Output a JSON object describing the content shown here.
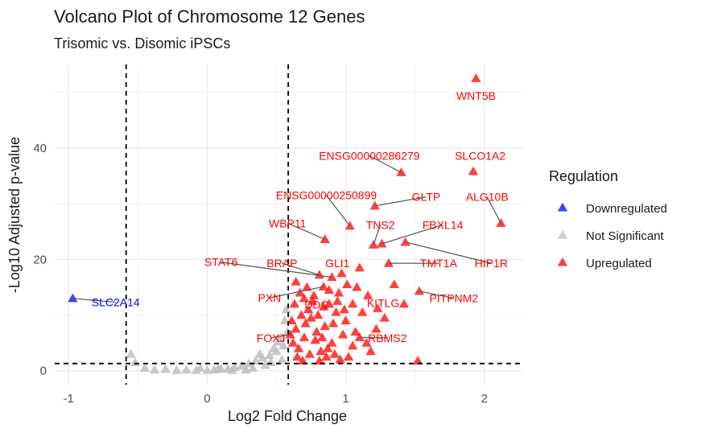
{
  "chart_data": {
    "type": "scatter",
    "title": "Volcano Plot of Chromosome 12 Genes",
    "subtitle": "Trisomic vs. Disomic iPSCs",
    "xlabel": "Log2 Fold Change",
    "ylabel": "-Log10 Adjusted p-value",
    "xlim": [
      -1.1,
      2.28
    ],
    "ylim": [
      -2.5,
      55
    ],
    "xticks": [
      -1,
      0,
      1,
      2
    ],
    "yticks": [
      0,
      20,
      40
    ],
    "grid": true,
    "thresholds": {
      "fold_change": [
        -0.585,
        0.585
      ],
      "p_value_line": 1.3
    },
    "legend": {
      "title": "Regulation",
      "position": "right",
      "entries": [
        {
          "name": "Downregulated",
          "color": "#0000FF"
        },
        {
          "name": "Not Significant",
          "color": "#BEBEBE"
        },
        {
          "name": "Upregulated",
          "color": "#FF0000"
        }
      ]
    },
    "colors": {
      "Downregulated": "#0000FF",
      "Not Significant": "#BEBEBE",
      "Upregulated": "#FF0000"
    },
    "labeled_points": [
      {
        "gene": "WNT5B",
        "x": 1.94,
        "y": 52.5,
        "regulation": "Upregulated",
        "lx": 1.94,
        "ly": 49.4
      },
      {
        "gene": "ENSG00000286279",
        "x": 1.4,
        "y": 35.6,
        "regulation": "Upregulated",
        "lx": 1.17,
        "ly": 38.6
      },
      {
        "gene": "SLCO1A2",
        "x": 1.92,
        "y": 35.8,
        "regulation": "Upregulated",
        "lx": 1.97,
        "ly": 38.6
      },
      {
        "gene": "ENSG00000250899",
        "x": 1.03,
        "y": 26.0,
        "regulation": "Upregulated",
        "lx": 0.86,
        "ly": 31.5
      },
      {
        "gene": "GLTP",
        "x": 1.21,
        "y": 29.6,
        "regulation": "Upregulated",
        "lx": 1.58,
        "ly": 31.2
      },
      {
        "gene": "ALG10B",
        "x": 2.12,
        "y": 26.5,
        "regulation": "Upregulated",
        "lx": 2.02,
        "ly": 31.2
      },
      {
        "gene": "WBP11",
        "x": 0.85,
        "y": 23.6,
        "regulation": "Upregulated",
        "lx": 0.58,
        "ly": 26.5
      },
      {
        "gene": "TNS2",
        "x": 1.2,
        "y": 22.6,
        "regulation": "Upregulated",
        "lx": 1.25,
        "ly": 26.2
      },
      {
        "gene": "FBXL14",
        "x": 1.26,
        "y": 22.8,
        "regulation": "Upregulated",
        "lx": 1.7,
        "ly": 26.2
      },
      {
        "gene": "HIP1R",
        "x": 1.43,
        "y": 23.1,
        "regulation": "Upregulated",
        "lx": 2.05,
        "ly": 19.3
      },
      {
        "gene": "STAT6",
        "x": 0.9,
        "y": 16.8,
        "regulation": "Upregulated",
        "lx": 0.1,
        "ly": 19.5
      },
      {
        "gene": "BRAP",
        "x": 0.81,
        "y": 17.2,
        "regulation": "Upregulated",
        "lx": 0.54,
        "ly": 19.3
      },
      {
        "gene": "GLI1",
        "x": 0.97,
        "y": 17.5,
        "regulation": "Upregulated",
        "lx": 0.94,
        "ly": 19.3
      },
      {
        "gene": "TMT1A",
        "x": 1.31,
        "y": 19.3,
        "regulation": "Upregulated",
        "lx": 1.67,
        "ly": 19.3
      },
      {
        "gene": "PITPNM2",
        "x": 1.53,
        "y": 14.3,
        "regulation": "Upregulated",
        "lx": 1.78,
        "ly": 13.0
      },
      {
        "gene": "PXN",
        "x": 0.84,
        "y": 15.1,
        "regulation": "Upregulated",
        "lx": 0.45,
        "ly": 13.1
      },
      {
        "gene": "KITLG",
        "x": 1.23,
        "y": 11.2,
        "regulation": "Upregulated",
        "lx": 1.27,
        "ly": 12.2
      },
      {
        "gene": "DDC",
        "x": 0.88,
        "y": 12.0,
        "regulation": "Upregulated",
        "lx": 0.79,
        "ly": 11.9
      },
      {
        "gene": "FOXJ",
        "x": 0.6,
        "y": 6.5,
        "regulation": "Upregulated",
        "lx": 0.46,
        "ly": 5.9
      },
      {
        "gene": "RBMS2",
        "x": 1.1,
        "y": 6.0,
        "regulation": "Upregulated",
        "lx": 1.3,
        "ly": 5.9
      },
      {
        "gene": "SLC2A14",
        "x": -0.97,
        "y": 13.0,
        "regulation": "Downregulated",
        "lx": -0.66,
        "ly": 12.3
      }
    ],
    "unlabeled_upregulated": [
      [
        1.52,
        1.8
      ],
      [
        1.35,
        15.5
      ],
      [
        1.1,
        18.5
      ],
      [
        1.42,
        12.0
      ],
      [
        1.16,
        13.5
      ],
      [
        1.05,
        12.0
      ],
      [
        1.28,
        9.5
      ],
      [
        1.22,
        7.5
      ],
      [
        1.15,
        5.0
      ],
      [
        1.05,
        4.5
      ],
      [
        1.0,
        9.0
      ],
      [
        0.95,
        14.0
      ],
      [
        1.08,
        15.0
      ],
      [
        0.93,
        10.5
      ],
      [
        0.98,
        6.5
      ],
      [
        0.9,
        5.0
      ],
      [
        0.85,
        8.0
      ],
      [
        0.8,
        10.0
      ],
      [
        0.76,
        12.5
      ],
      [
        0.72,
        15.0
      ],
      [
        0.68,
        10.0
      ],
      [
        0.64,
        7.5
      ],
      [
        0.66,
        4.0
      ],
      [
        0.7,
        6.0
      ],
      [
        0.74,
        3.0
      ],
      [
        0.78,
        5.5
      ],
      [
        0.82,
        3.5
      ],
      [
        0.86,
        2.5
      ],
      [
        0.92,
        3.0
      ],
      [
        0.96,
        2.0
      ],
      [
        1.02,
        2.5
      ],
      [
        0.63,
        12.0
      ],
      [
        0.67,
        14.0
      ],
      [
        0.71,
        8.5
      ],
      [
        0.75,
        9.5
      ],
      [
        0.79,
        7.0
      ],
      [
        0.83,
        6.0
      ],
      [
        0.87,
        4.0
      ],
      [
        0.91,
        8.5
      ],
      [
        1.12,
        10.5
      ],
      [
        1.18,
        3.5
      ],
      [
        0.62,
        5.0
      ],
      [
        0.65,
        2.5
      ],
      [
        0.69,
        1.8
      ],
      [
        0.73,
        11.0
      ],
      [
        0.77,
        13.5
      ],
      [
        0.81,
        1.8
      ],
      [
        0.88,
        14.5
      ],
      [
        0.94,
        12.5
      ],
      [
        1.01,
        15.5
      ],
      [
        0.61,
        9.0
      ],
      [
        0.64,
        16.0
      ],
      [
        0.7,
        13.0
      ],
      [
        0.84,
        11.5
      ],
      [
        0.99,
        11.0
      ],
      [
        1.07,
        7.0
      ]
    ],
    "unlabeled_not_significant": [
      [
        -0.55,
        3.0
      ],
      [
        -0.52,
        1.5
      ],
      [
        -0.45,
        0.5
      ],
      [
        -0.38,
        0.2
      ],
      [
        -0.3,
        0.3
      ],
      [
        -0.22,
        0.1
      ],
      [
        -0.15,
        0.2
      ],
      [
        -0.08,
        0.1
      ],
      [
        0.0,
        0.1
      ],
      [
        0.05,
        0.2
      ],
      [
        0.1,
        0.3
      ],
      [
        0.15,
        0.4
      ],
      [
        0.2,
        0.6
      ],
      [
        0.25,
        0.9
      ],
      [
        0.3,
        1.3
      ],
      [
        0.35,
        1.8
      ],
      [
        0.4,
        2.3
      ],
      [
        0.45,
        2.8
      ],
      [
        0.5,
        3.5
      ],
      [
        0.55,
        4.5
      ],
      [
        0.58,
        7.0
      ],
      [
        0.56,
        9.0
      ],
      [
        0.53,
        6.0
      ],
      [
        0.48,
        4.0
      ],
      [
        0.42,
        1.0
      ],
      [
        0.33,
        0.5
      ],
      [
        0.28,
        0.2
      ],
      [
        0.18,
        0.1
      ],
      [
        0.08,
        0.4
      ],
      [
        -0.05,
        0.5
      ],
      [
        0.57,
        11.0
      ],
      [
        0.54,
        2.0
      ],
      [
        0.46,
        1.5
      ],
      [
        0.38,
        3.0
      ],
      [
        0.51,
        5.2
      ]
    ]
  }
}
